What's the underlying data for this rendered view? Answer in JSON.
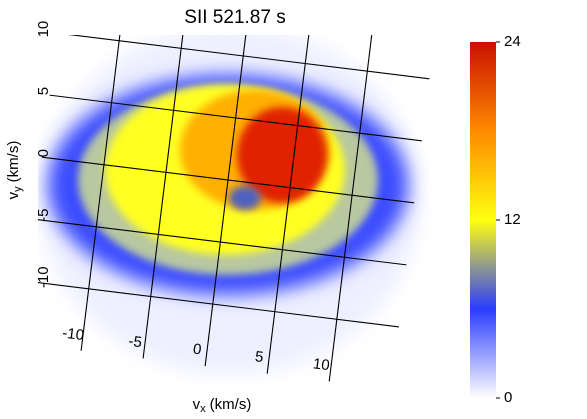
{
  "chart_data": {
    "type": "heatmap",
    "title": "SII 521.87 s",
    "xlabel": {
      "symbol": "v",
      "subscript": "x",
      "unit": "(km/s)"
    },
    "ylabel": {
      "symbol": "v",
      "subscript": "y",
      "unit": "(km/s)"
    },
    "xlim": [
      -15,
      15
    ],
    "ylim": [
      -15,
      15
    ],
    "xticks": [
      -10,
      -5,
      0,
      5,
      10
    ],
    "yticks": [
      -10,
      -5,
      0,
      5,
      10
    ],
    "grid": true,
    "clim": [
      0,
      24
    ],
    "cticks": [
      0,
      12,
      24
    ],
    "colormap": [
      "#ffffff",
      "#2a3cff",
      "#ffff10",
      "#ff8a00",
      "#c81000"
    ]
  }
}
